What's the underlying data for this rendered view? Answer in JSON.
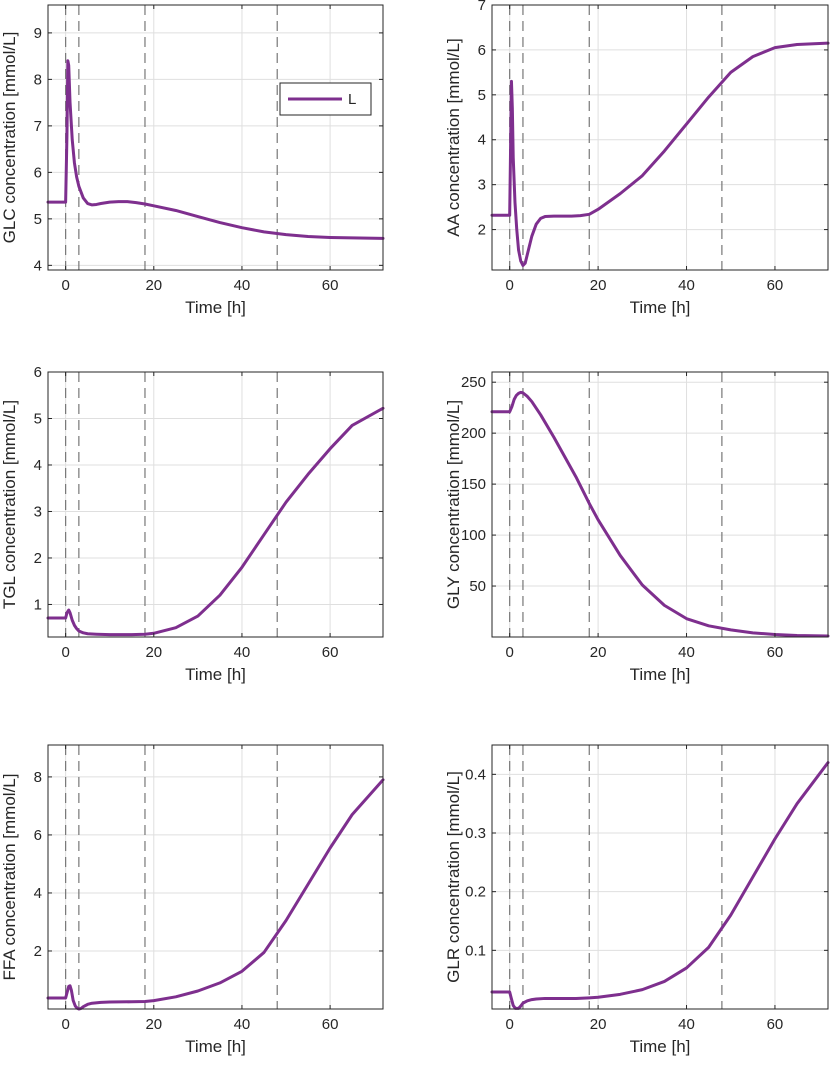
{
  "colors": {
    "series": "#7E2F8E",
    "axis": "#262626",
    "grid": "#dfdfdf",
    "event_line": "#777777"
  },
  "legend": {
    "label": "L",
    "location": "top-right",
    "panel": 0
  },
  "event_times": [
    0,
    3,
    18,
    48
  ],
  "chart_data": [
    {
      "type": "line",
      "title": "",
      "xlabel": "Time [h]",
      "ylabel": "GLC concentration [mmol/L]",
      "xlim": [
        -4,
        72
      ],
      "ylim": [
        3.9,
        9.6
      ],
      "xticks": [
        0,
        20,
        40,
        60
      ],
      "xtick_labels": [
        "0",
        "20",
        "40",
        "60"
      ],
      "yticks": [
        4,
        5,
        6,
        7,
        8,
        9
      ],
      "ytick_labels": [
        "4",
        "5",
        "6",
        "7",
        "8",
        "9"
      ],
      "grid": true,
      "series": [
        {
          "name": "L",
          "x": [
            -4,
            0,
            0.3,
            0.5,
            0.7,
            1,
            1.5,
            2,
            2.5,
            3,
            4,
            5,
            6,
            7,
            8,
            10,
            12,
            14,
            16,
            18,
            20,
            25,
            30,
            35,
            40,
            45,
            50,
            55,
            60,
            65,
            72
          ],
          "y": [
            5.36,
            5.36,
            6.8,
            8.4,
            8.3,
            7.5,
            6.7,
            6.2,
            5.9,
            5.7,
            5.45,
            5.33,
            5.3,
            5.31,
            5.33,
            5.36,
            5.37,
            5.37,
            5.35,
            5.32,
            5.28,
            5.18,
            5.05,
            4.92,
            4.81,
            4.72,
            4.66,
            4.62,
            4.6,
            4.59,
            4.58
          ]
        }
      ]
    },
    {
      "type": "line",
      "title": "",
      "xlabel": "Time [h]",
      "ylabel": "AA concentration [mmol/L]",
      "xlim": [
        -4,
        72
      ],
      "ylim": [
        1.1,
        7.0
      ],
      "xticks": [
        0,
        20,
        40,
        60
      ],
      "xtick_labels": [
        "0",
        "20",
        "40",
        "60"
      ],
      "yticks": [
        2,
        3,
        4,
        5,
        6,
        7
      ],
      "ytick_labels": [
        "2",
        "3",
        "4",
        "5",
        "6",
        "7"
      ],
      "grid": true,
      "series": [
        {
          "name": "L",
          "x": [
            -4,
            0,
            0.2,
            0.4,
            0.6,
            0.8,
            1.2,
            1.6,
            2,
            2.5,
            3,
            3.5,
            4,
            5,
            6,
            7,
            8,
            10,
            12,
            14,
            16,
            18,
            20,
            25,
            30,
            35,
            40,
            45,
            50,
            55,
            60,
            65,
            72
          ],
          "y": [
            2.32,
            2.32,
            3.8,
            5.3,
            4.7,
            3.6,
            2.6,
            2.0,
            1.55,
            1.3,
            1.2,
            1.25,
            1.45,
            1.85,
            2.12,
            2.25,
            2.29,
            2.3,
            2.3,
            2.3,
            2.31,
            2.34,
            2.45,
            2.8,
            3.2,
            3.75,
            4.35,
            4.95,
            5.5,
            5.85,
            6.05,
            6.12,
            6.15
          ]
        }
      ]
    },
    {
      "type": "line",
      "title": "",
      "xlabel": "Time [h]",
      "ylabel": "TGL concentration [mmol/L]",
      "xlim": [
        -4,
        72
      ],
      "ylim": [
        0.3,
        6.0
      ],
      "xticks": [
        0,
        20,
        40,
        60
      ],
      "xtick_labels": [
        "0",
        "20",
        "40",
        "60"
      ],
      "yticks": [
        1,
        2,
        3,
        4,
        5,
        6
      ],
      "ytick_labels": [
        "1",
        "2",
        "3",
        "4",
        "5",
        "6"
      ],
      "grid": true,
      "series": [
        {
          "name": "L",
          "x": [
            -4,
            0,
            0.3,
            0.7,
            1,
            1.5,
            2,
            2.5,
            3,
            4,
            5,
            7,
            10,
            15,
            18,
            20,
            25,
            30,
            35,
            40,
            45,
            50,
            55,
            60,
            65,
            72
          ],
          "y": [
            0.71,
            0.71,
            0.82,
            0.88,
            0.82,
            0.66,
            0.55,
            0.48,
            0.43,
            0.39,
            0.37,
            0.36,
            0.35,
            0.35,
            0.36,
            0.38,
            0.5,
            0.75,
            1.2,
            1.8,
            2.5,
            3.2,
            3.8,
            4.35,
            4.85,
            5.22
          ]
        }
      ]
    },
    {
      "type": "line",
      "title": "",
      "xlabel": "Time [h]",
      "ylabel": "GLY concentration [mmol/L]",
      "xlim": [
        -4,
        72
      ],
      "ylim": [
        0,
        260
      ],
      "xticks": [
        0,
        20,
        40,
        60
      ],
      "xtick_labels": [
        "0",
        "20",
        "40",
        "60"
      ],
      "yticks": [
        50,
        100,
        150,
        200,
        250
      ],
      "ytick_labels": [
        "50",
        "100",
        "150",
        "200",
        "250"
      ],
      "grid": true,
      "series": [
        {
          "name": "L",
          "x": [
            -4,
            0,
            0.5,
            1,
            1.5,
            2,
            2.5,
            3,
            4,
            5,
            7,
            10,
            15,
            18,
            20,
            25,
            30,
            35,
            40,
            45,
            50,
            55,
            60,
            65,
            72
          ],
          "y": [
            221,
            221,
            226,
            233,
            237,
            239,
            240,
            239.5,
            236,
            231,
            218,
            196,
            157,
            131,
            115,
            80,
            51,
            31,
            18,
            11,
            7,
            4,
            2.5,
            1.5,
            1
          ]
        }
      ]
    },
    {
      "type": "line",
      "title": "",
      "xlabel": "Time [h]",
      "ylabel": "FFA concentration [mmol/L]",
      "xlim": [
        -4,
        72
      ],
      "ylim": [
        0,
        9.1
      ],
      "xticks": [
        0,
        20,
        40,
        60
      ],
      "xtick_labels": [
        "0",
        "20",
        "40",
        "60"
      ],
      "yticks": [
        2,
        4,
        6,
        8
      ],
      "ytick_labels": [
        "2",
        "4",
        "6",
        "8"
      ],
      "grid": true,
      "series": [
        {
          "name": "L",
          "x": [
            -4,
            0,
            0.3,
            0.7,
            1,
            1.3,
            1.7,
            2.2,
            2.7,
            3,
            3.5,
            4,
            5,
            6,
            8,
            10,
            15,
            18,
            20,
            25,
            30,
            35,
            40,
            45,
            50,
            55,
            60,
            65,
            72
          ],
          "y": [
            0.38,
            0.38,
            0.55,
            0.78,
            0.8,
            0.65,
            0.3,
            0.1,
            0.02,
            0.0,
            0.02,
            0.08,
            0.16,
            0.2,
            0.23,
            0.24,
            0.25,
            0.26,
            0.29,
            0.42,
            0.62,
            0.9,
            1.3,
            1.95,
            3.05,
            4.3,
            5.55,
            6.7,
            7.9
          ]
        }
      ]
    },
    {
      "type": "line",
      "title": "",
      "xlabel": "Time [h]",
      "ylabel": "GLR concentration [mmol/L]",
      "xlim": [
        -4,
        72
      ],
      "ylim": [
        0,
        0.45
      ],
      "xticks": [
        0,
        20,
        40,
        60
      ],
      "xtick_labels": [
        "0",
        "20",
        "40",
        "60"
      ],
      "yticks": [
        0.1,
        0.2,
        0.3,
        0.4
      ],
      "ytick_labels": [
        "0.1",
        "0.2",
        "0.3",
        "0.4"
      ],
      "grid": true,
      "series": [
        {
          "name": "L",
          "x": [
            -4,
            0,
            0.3,
            0.8,
            1.3,
            2,
            2.5,
            3,
            4,
            5,
            6,
            8,
            10,
            15,
            18,
            20,
            25,
            30,
            35,
            40,
            45,
            50,
            55,
            60,
            65,
            72
          ],
          "y": [
            0.029,
            0.029,
            0.02,
            0.006,
            0.001,
            0.001,
            0.005,
            0.01,
            0.014,
            0.016,
            0.017,
            0.018,
            0.018,
            0.018,
            0.019,
            0.02,
            0.025,
            0.033,
            0.047,
            0.07,
            0.105,
            0.16,
            0.225,
            0.29,
            0.35,
            0.42
          ]
        }
      ]
    }
  ]
}
